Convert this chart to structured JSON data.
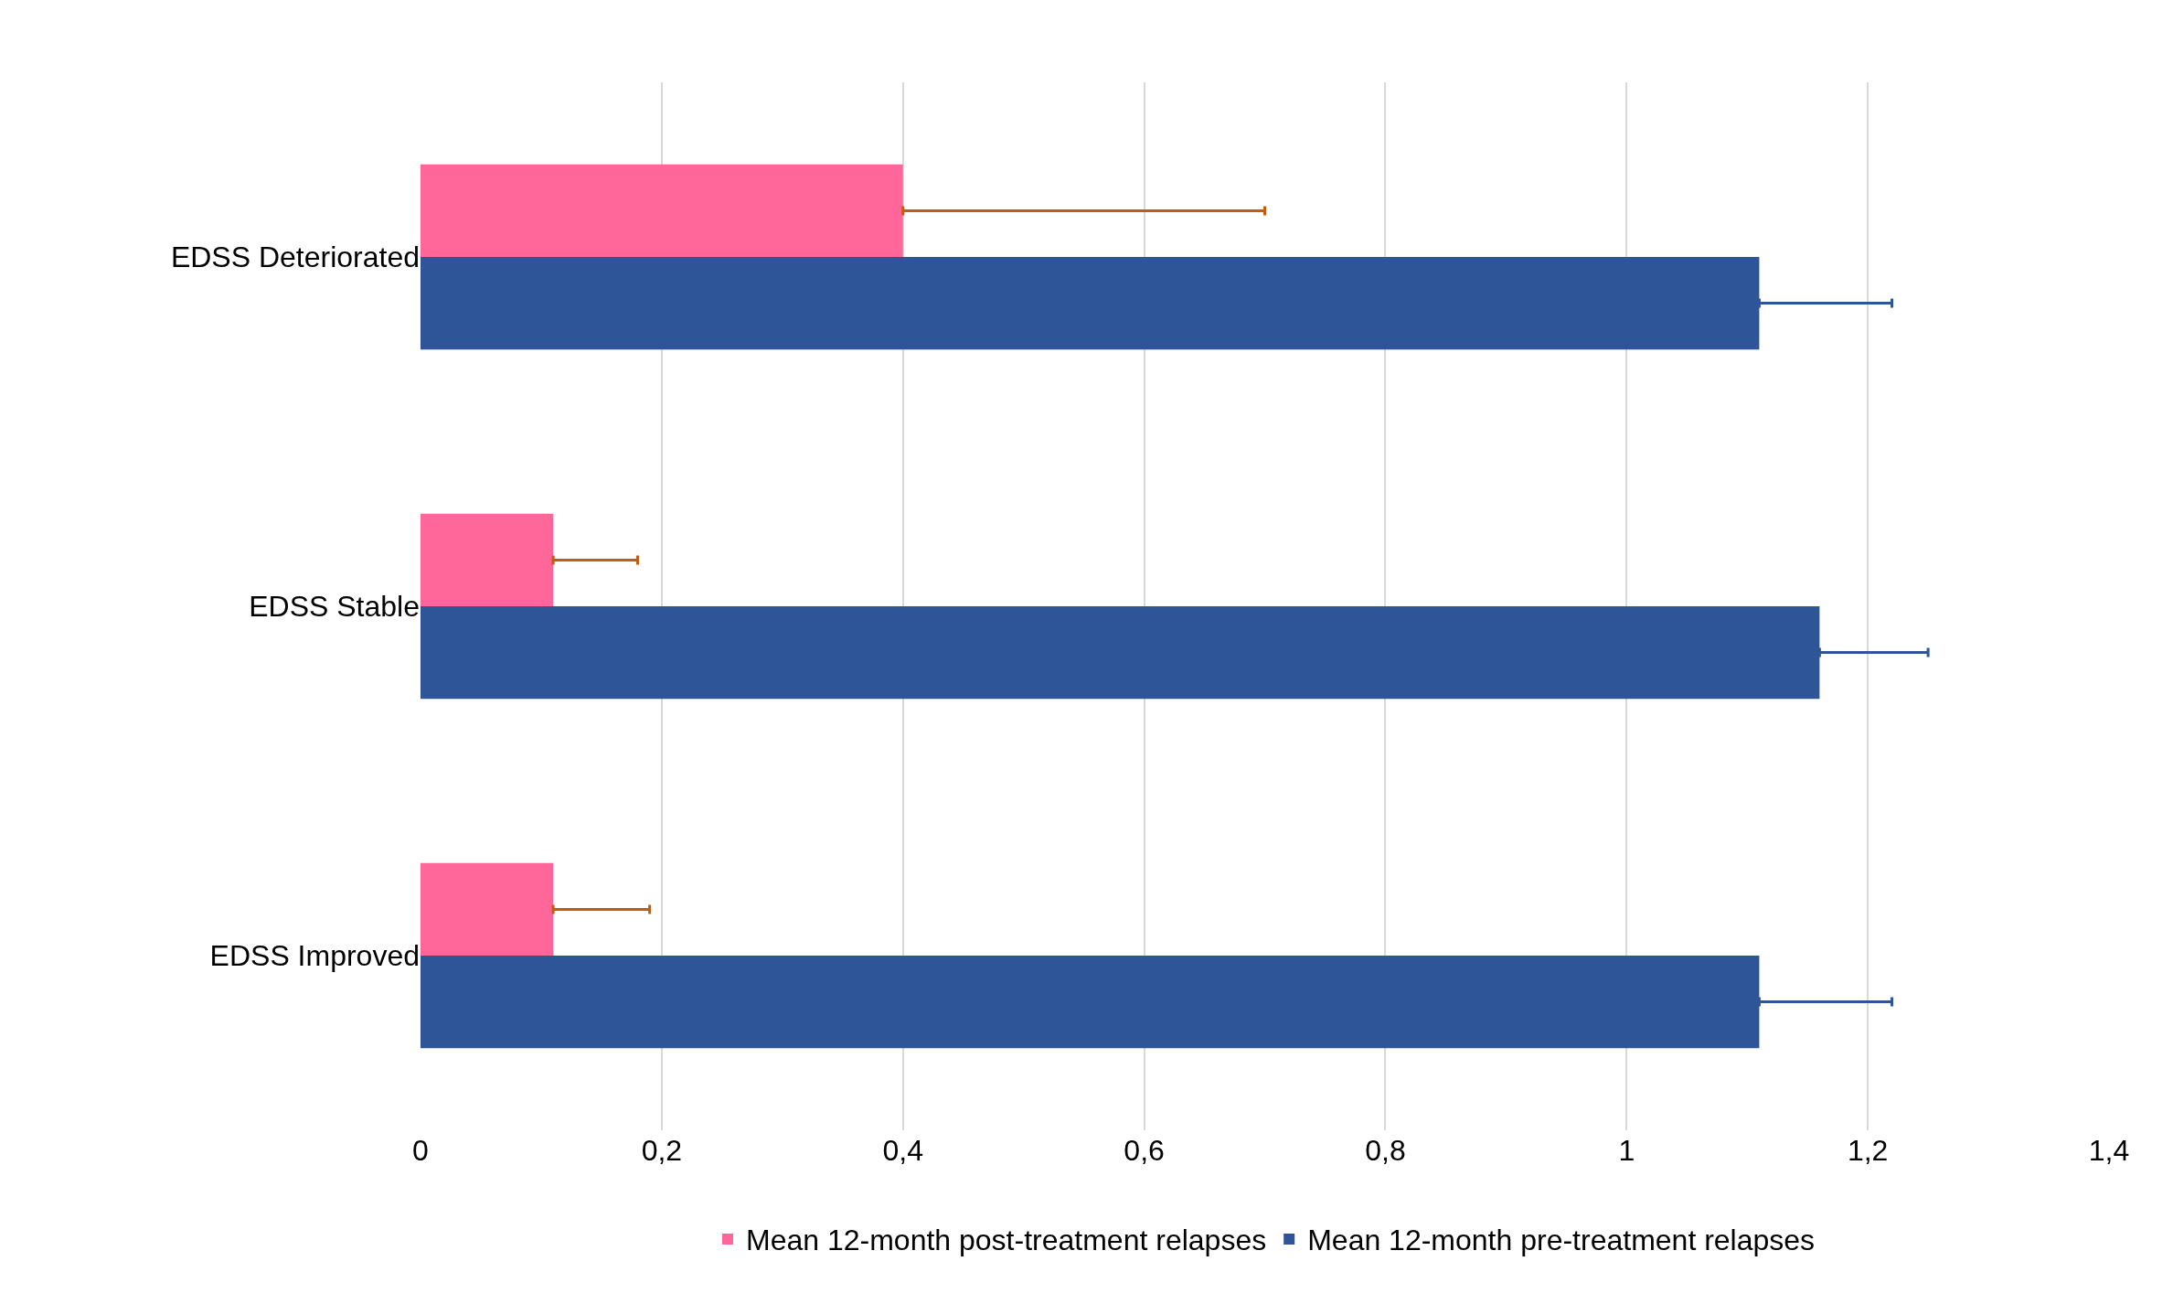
{
  "chart_data": {
    "type": "bar",
    "orientation": "horizontal",
    "categories": [
      "EDSS Deteriorated",
      "EDSS Stable",
      "EDSS Improved"
    ],
    "series": [
      {
        "name": "Mean 12-month post-treatment relapses",
        "color": "#ff6699",
        "values": [
          0.4,
          0.11,
          0.11
        ],
        "errors": [
          [
            0.4,
            0.7
          ],
          [
            0.11,
            0.18
          ],
          [
            0.11,
            0.19
          ]
        ]
      },
      {
        "name": "Mean 12-month pre-treatment relapses",
        "color": "#2e5597",
        "values": [
          1.11,
          1.16,
          1.11
        ],
        "errors": [
          [
            1.11,
            1.22
          ],
          [
            1.16,
            1.25
          ],
          [
            1.11,
            1.22
          ]
        ]
      }
    ],
    "xlim": [
      0,
      1.4
    ],
    "xticks": [
      0,
      {
        "value": 0.2,
        "label": "0,2"
      },
      {
        "value": 0.4,
        "label": "0,4"
      },
      {
        "value": 0.6,
        "label": "0,6"
      },
      {
        "value": 0.8,
        "label": "0,8"
      },
      1,
      {
        "value": 1.2,
        "label": "1,2"
      },
      {
        "value": 1.4,
        "label": "1,4"
      }
    ],
    "grid": "x",
    "legend": "bottom"
  }
}
